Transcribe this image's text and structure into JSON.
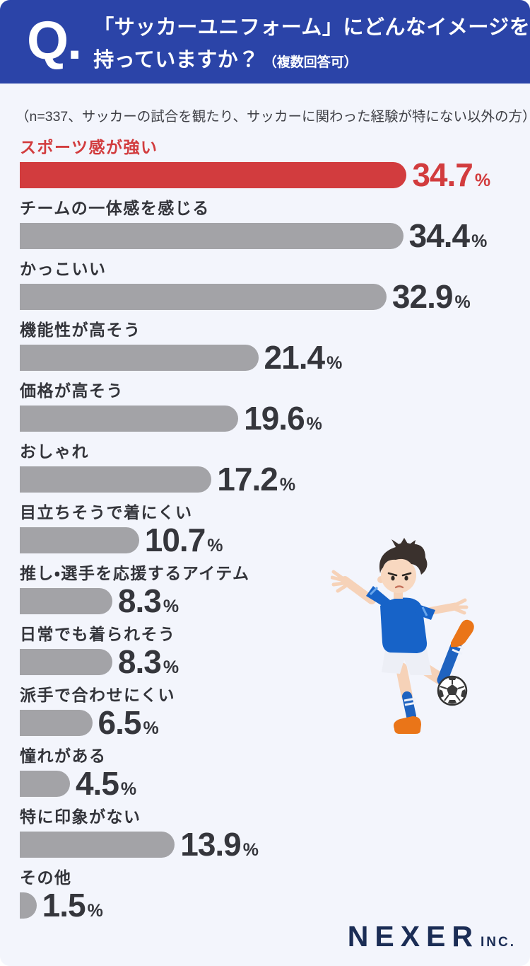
{
  "header": {
    "q_label": "Q.",
    "title_line1": "「サッカーユニフォーム」にどんなイメージを",
    "title_line2": "持っていますか？",
    "title_note": "（複数回答可）"
  },
  "note": "（n=337、サッカーの試合を観たり、サッカーに関わった経験が特にない以外の方）",
  "chart_data": {
    "type": "bar",
    "orientation": "horizontal",
    "title": "「サッカーユニフォーム」にどんなイメージを持っていますか？（複数回答可）",
    "sample_note": "n=337、サッカーの試合を観たり、サッカーに関わった経験が特にない以外の方",
    "unit": "%",
    "xlim": [
      0,
      44
    ],
    "grid": false,
    "legend": "none",
    "categories": [
      "スポーツ感が強い",
      "チームの一体感を感じる",
      "かっこいい",
      "機能性が高そう",
      "価格が高そう",
      "おしゃれ",
      "目立ちそうで着にくい",
      "推し・選手を応援するアイテム",
      "日常でも着られそう",
      "派手で合わせにくい",
      "憧れがある",
      "特に印象がない",
      "その他"
    ],
    "values": [
      34.7,
      34.4,
      32.9,
      21.4,
      19.6,
      17.2,
      10.7,
      8.3,
      8.3,
      6.5,
      4.5,
      13.9,
      1.5
    ],
    "rows": [
      {
        "label": "スポーツ感が強い",
        "value": 34.7,
        "display": "34.7",
        "highlight": true
      },
      {
        "label": "チームの一体感を感じる",
        "value": 34.4,
        "display": "34.4",
        "highlight": false
      },
      {
        "label": "かっこいい",
        "value": 32.9,
        "display": "32.9",
        "highlight": false
      },
      {
        "label": "機能性が高そう",
        "value": 21.4,
        "display": "21.4",
        "highlight": false
      },
      {
        "label": "価格が高そう",
        "value": 19.6,
        "display": "19.6",
        "highlight": false
      },
      {
        "label": "おしゃれ",
        "value": 17.2,
        "display": "17.2",
        "highlight": false
      },
      {
        "label": "目立ちそうで着にくい",
        "value": 10.7,
        "display": "10.7",
        "highlight": false
      },
      {
        "label": "推し・選手を応援するアイテム",
        "value": 8.3,
        "display": "8.3",
        "highlight": false
      },
      {
        "label": "日常でも着られそう",
        "value": 8.3,
        "display": "8.3",
        "highlight": false
      },
      {
        "label": "派手で合わせにくい",
        "value": 6.5,
        "display": "6.5",
        "highlight": false
      },
      {
        "label": "憧れがある",
        "value": 4.5,
        "display": "4.5",
        "highlight": false
      },
      {
        "label": "特に印象がない",
        "value": 13.9,
        "display": "13.9",
        "highlight": false
      },
      {
        "label": "その他",
        "value": 1.5,
        "display": "1.5",
        "highlight": false
      }
    ],
    "highlight_color": "#d23c3e",
    "bar_color": "#a3a3a7"
  },
  "colors": {
    "header_bg": "#2b44a8",
    "background": "#f3f5fc",
    "text": "#35363c",
    "brand": "#1b2d55"
  },
  "illustration": "soccer-player-kicking-ball",
  "footer": {
    "brand": "NEXER",
    "brand_suffix": "INC."
  }
}
